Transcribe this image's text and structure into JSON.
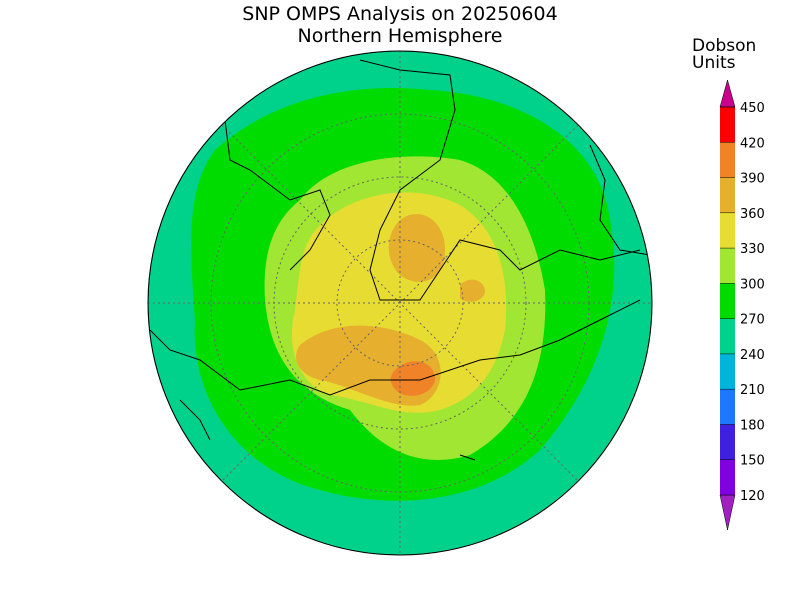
{
  "header": {
    "title": "SNP OMPS Analysis on 20250604",
    "subtitle": "Northern Hemisphere"
  },
  "colorbar": {
    "label_lines": [
      "Dobson",
      "Units"
    ],
    "ticks": [
      120,
      150,
      180,
      210,
      240,
      270,
      300,
      330,
      360,
      390,
      420,
      450
    ],
    "colors": [
      "#a020c0",
      "#8000e0",
      "#4020e0",
      "#1e78ff",
      "#00b4dc",
      "#00d28c",
      "#00dc00",
      "#a0e632",
      "#e6dc32",
      "#e6af2d",
      "#f08228",
      "#fa0000",
      "#c8008c"
    ]
  }
}
